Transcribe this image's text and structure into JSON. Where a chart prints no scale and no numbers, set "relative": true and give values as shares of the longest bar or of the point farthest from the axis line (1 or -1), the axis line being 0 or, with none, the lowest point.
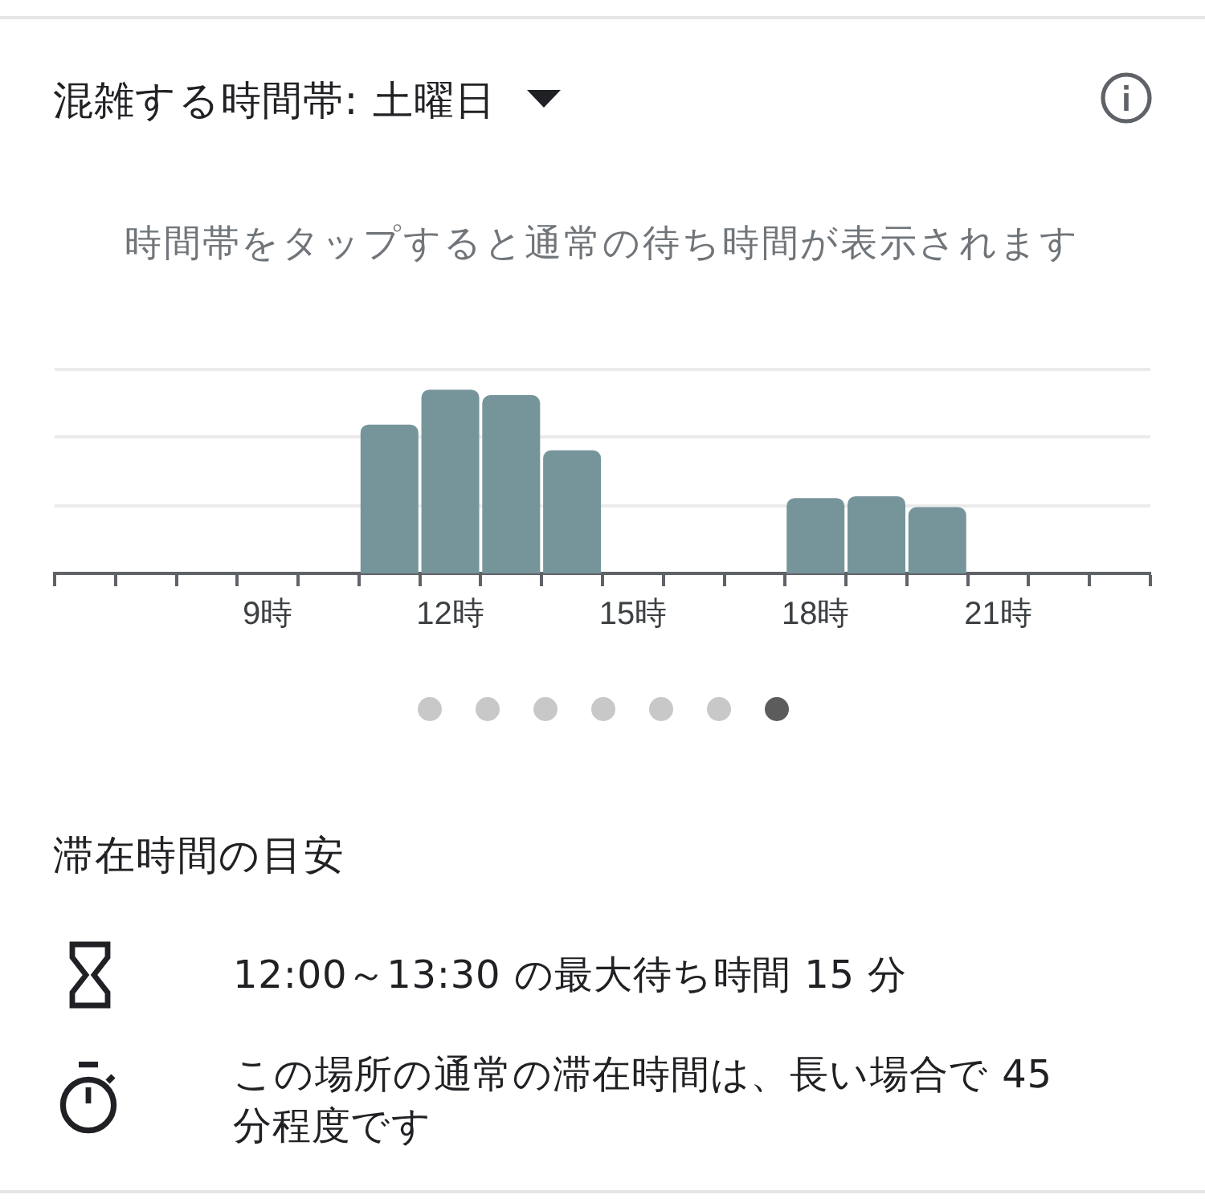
{
  "chart_data": {
    "type": "bar",
    "title": "混雑する時間帯: 土曜日",
    "subtitle": "時間帯をタップすると通常の待ち時間が表示されます",
    "annotations": [
      "滞在時間の目安",
      "12:00～13:30 の最大待ち時間 15 分",
      "この場所の通常の滞在時間は、長い場合で 45 分程度です"
    ],
    "categories": [
      null,
      null,
      null,
      "9時",
      null,
      null,
      "12時",
      null,
      null,
      "15時",
      null,
      null,
      "18時",
      null,
      null,
      "21時",
      null,
      null
    ],
    "values": [
      0,
      0,
      0,
      0,
      0,
      0.81,
      1,
      0.97,
      0.67,
      0,
      0,
      0,
      0.41,
      0.42,
      0.36,
      0,
      0,
      0
    ],
    "color": "#76959b",
    "relative": true,
    "ref_lines": [
      {
        "axis": "y",
        "value": 0.37,
        "color": "#ebebeb"
      },
      {
        "axis": "y",
        "value": 0.74,
        "color": "#ebebeb"
      },
      {
        "axis": "y",
        "value": 1.11,
        "color": "#ebebeb"
      }
    ]
  }
}
